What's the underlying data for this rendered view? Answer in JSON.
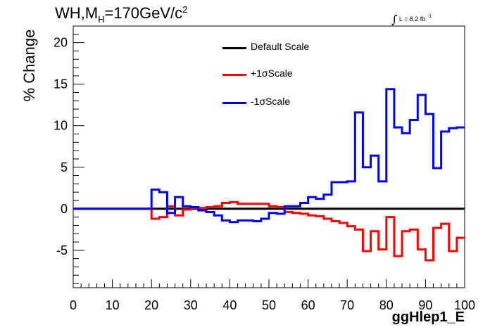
{
  "chart_data": {
    "type": "line",
    "step": true,
    "title_main": "WH,M",
    "title_sub": "H",
    "title_rest": "=170GeV/c",
    "title_sup": "2",
    "lumi_text": "L = 8.2 fb",
    "lumi_sup": "-1",
    "ylabel": "% Change",
    "xlabel": "ggHlep1_E",
    "xlim": [
      0,
      100
    ],
    "ylim": [
      -9.5,
      22
    ],
    "x_ticks": [
      0,
      10,
      20,
      30,
      40,
      50,
      60,
      70,
      80,
      90,
      100
    ],
    "y_ticks": [
      -5,
      0,
      5,
      10,
      15,
      20
    ],
    "legend_position": "top-center",
    "bin_edges": [
      0,
      20,
      22,
      24,
      26,
      28,
      30,
      32,
      34,
      36,
      38,
      40,
      42,
      44,
      46,
      48,
      50,
      52,
      54,
      56,
      58,
      60,
      62,
      64,
      66,
      68,
      70,
      72,
      74,
      76,
      78,
      80,
      82,
      84,
      86,
      88,
      90,
      92,
      94,
      96,
      98,
      100
    ],
    "series": [
      {
        "name": "Default Scale",
        "color": "#000000",
        "values": [
          0,
          0,
          0,
          0,
          0,
          0,
          0,
          0,
          0,
          0,
          0,
          0,
          0,
          0,
          0,
          0,
          0,
          0,
          0,
          0,
          0,
          0,
          0,
          0,
          0,
          0,
          0,
          0,
          0,
          0,
          0,
          0,
          0,
          0,
          0,
          0,
          0,
          0,
          0,
          0,
          0
        ]
      },
      {
        "name": "+1σScale",
        "color": "#ff0000",
        "values": [
          0,
          -1.2,
          -1.0,
          0.3,
          -0.8,
          -0.1,
          0.1,
          0.1,
          0.2,
          0.3,
          0.7,
          0.8,
          0.6,
          0.6,
          0.6,
          0.6,
          0.3,
          0.2,
          -0.4,
          -0.5,
          -0.6,
          -0.8,
          -0.9,
          -1.2,
          -1.5,
          -1.7,
          -2.1,
          -2.5,
          -5.1,
          -2.7,
          -4.9,
          -1.0,
          -5.7,
          -2.7,
          -2.5,
          -4.9,
          -6.2,
          -2.3,
          -1.8,
          -5.1,
          -3.5
        ]
      },
      {
        "name": "-1σScale",
        "color": "#0000ff",
        "values": [
          0,
          2.3,
          2.0,
          -0.5,
          1.4,
          0.3,
          0.2,
          -0.2,
          -0.4,
          -0.8,
          -1.4,
          -1.6,
          -1.4,
          -1.4,
          -1.5,
          -1.2,
          -0.5,
          -0.6,
          0.3,
          0.3,
          0.7,
          1.4,
          1.2,
          1.7,
          3.2,
          3.2,
          3.3,
          11.6,
          5.0,
          6.4,
          3.3,
          14.4,
          9.8,
          9.1,
          10.7,
          13.7,
          11.4,
          4.9,
          9.3,
          9.7,
          9.8
        ]
      }
    ]
  }
}
